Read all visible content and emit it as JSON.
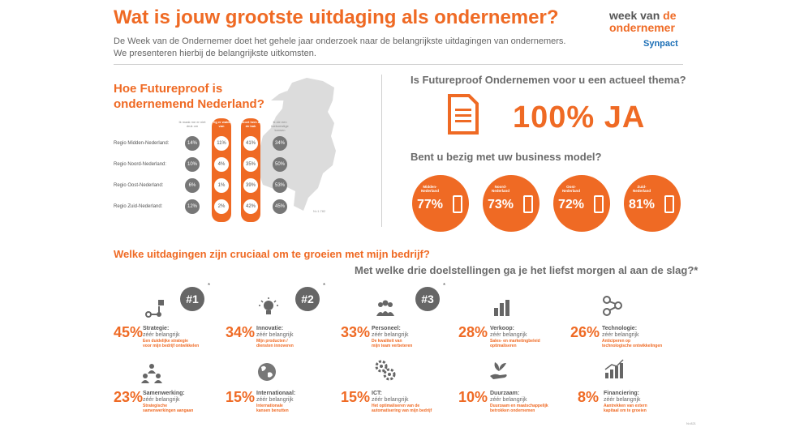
{
  "header": {
    "title": "Wat is jouw grootste uitdaging als ondernemer?",
    "intro_line1": "De Week van de Ondernemer doet het gehele jaar onderzoek naar de belangrijkste uitdagingen van ondernemers.",
    "intro_line2": "We presenteren hierbij de belangrijkste uitkomsten.",
    "logo_week": "week van",
    "logo_de": "de",
    "logo_ondernemer": "ondernemer",
    "logo_synpact": "Synpact"
  },
  "futureproof": {
    "title_line1": "Hoe Futureproof is",
    "title_line2": "ondernemend Nederland?",
    "columns": [
      "Ik maak me er niet druk om",
      "Ik lig er wakker van",
      "Ik moet hem aan de bak",
      "Ik zie een toekomstige kansen"
    ],
    "rows": [
      {
        "region": "Regio Midden-Nederland:",
        "values": [
          "14%",
          "11%",
          "41%",
          "34%"
        ]
      },
      {
        "region": "Regio Noord-Nederland:",
        "values": [
          "10%",
          "4%",
          "35%",
          "50%"
        ]
      },
      {
        "region": "Regio Oost-Nederland:",
        "values": [
          "6%",
          "1%",
          "39%",
          "53%"
        ]
      },
      {
        "region": "Regio Zuid-Nederland:",
        "values": [
          "12%",
          "2%",
          "42%",
          "45%"
        ]
      }
    ],
    "n": "N=1.782"
  },
  "actueel": {
    "question": "Is Futureproof Ondernemen voor u een actueel thema?",
    "answer": "100% JA",
    "business_question": "Bent u bezig met uw business model?",
    "regions": [
      {
        "name_l1": "Midden-",
        "name_l2": "Nederland",
        "pct": "77%"
      },
      {
        "name_l1": "Noord-",
        "name_l2": "Nederland",
        "pct": "73%"
      },
      {
        "name_l1": "Oost-",
        "name_l2": "Nederland",
        "pct": "72%"
      },
      {
        "name_l1": "Zuid-",
        "name_l2": "Nederland",
        "pct": "81%"
      }
    ]
  },
  "uitdagingen": {
    "title": "Welke uitdagingen zijn cruciaal om te groeien met mijn bedrijf?",
    "subtitle": "Met welke drie doelstellingen ga je het liefst morgen al aan de slag?*",
    "ranks": [
      "#1",
      "#2",
      "#3"
    ],
    "star": "*",
    "items": [
      {
        "pct": "45%",
        "title": "Strategie:",
        "sub": "zéér belangrijk",
        "d1": "Een duidelijke strategie",
        "d2": "voor mijn bedrijf ontwikkelen",
        "icon": "strategy-flow-icon"
      },
      {
        "pct": "34%",
        "title": "Innovatie:",
        "sub": "zéér belangrijk",
        "d1": "Mijn producten /",
        "d2": "diensten innoveren",
        "icon": "lightbulb-icon"
      },
      {
        "pct": "33%",
        "title": "Personeel:",
        "sub": "zéér belangrijk",
        "d1": "De kwaliteit van",
        "d2": "mijn team verbeteren",
        "icon": "people-icon"
      },
      {
        "pct": "28%",
        "title": "Verkoop:",
        "sub": "zéér belangrijk",
        "d1": "Sales- en marketingbeleid",
        "d2": "optimaliseren",
        "icon": "bar-chart-icon"
      },
      {
        "pct": "26%",
        "title": "Technologie:",
        "sub": "zéér belangrijk",
        "d1": "Anticiperen op",
        "d2": "technologische ontwikkelingen",
        "icon": "share-nodes-icon"
      },
      {
        "pct": "23%",
        "title": "Samenwerking:",
        "sub": "zéér belangrijk",
        "d1": "Strategische",
        "d2": "samenwerkingen aangaan",
        "icon": "team-network-icon"
      },
      {
        "pct": "15%",
        "title": "Internationaal:",
        "sub": "zéér belangrijk",
        "d1": "Internationale",
        "d2": "kansen benutten",
        "icon": "globe-icon"
      },
      {
        "pct": "15%",
        "title": "ICT:",
        "sub": "zéér belangrijk",
        "d1": "Het optimaliseren van de",
        "d2": "automatisering van mijn bedrijf",
        "icon": "gears-icon"
      },
      {
        "pct": "10%",
        "title": "Duurzaam:",
        "sub": "zéér belangrijk",
        "d1": "Duurzaam en maatschappelijk",
        "d2": "betrokken ondernemen",
        "icon": "plant-hand-icon"
      },
      {
        "pct": "8%",
        "title": "Financiering:",
        "sub": "zéér belangrijk",
        "d1": "Aantrekken van extern",
        "d2": "kapitaal om te groeien",
        "icon": "growth-chart-icon"
      }
    ],
    "n": "N=821"
  }
}
